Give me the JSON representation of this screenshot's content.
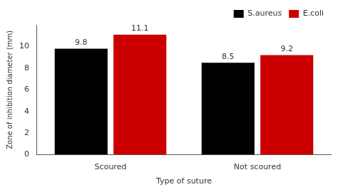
{
  "chart_data": {
    "type": "bar",
    "categories": [
      "Scoured",
      "Not scoured"
    ],
    "series": [
      {
        "name": "S.aureus",
        "color": "#000000",
        "values": [
          9.8,
          8.5
        ]
      },
      {
        "name": "E.coli",
        "color": "#cc0000",
        "values": [
          11.1,
          9.2
        ]
      }
    ],
    "xlabel": "Type of suture",
    "ylabel": "Zone of inhibition diameter (mm)",
    "ylim": [
      0,
      12
    ],
    "yticks": [
      0,
      2,
      4,
      6,
      8,
      10
    ],
    "grid": false,
    "legend": "upper right",
    "data_labels": true
  }
}
